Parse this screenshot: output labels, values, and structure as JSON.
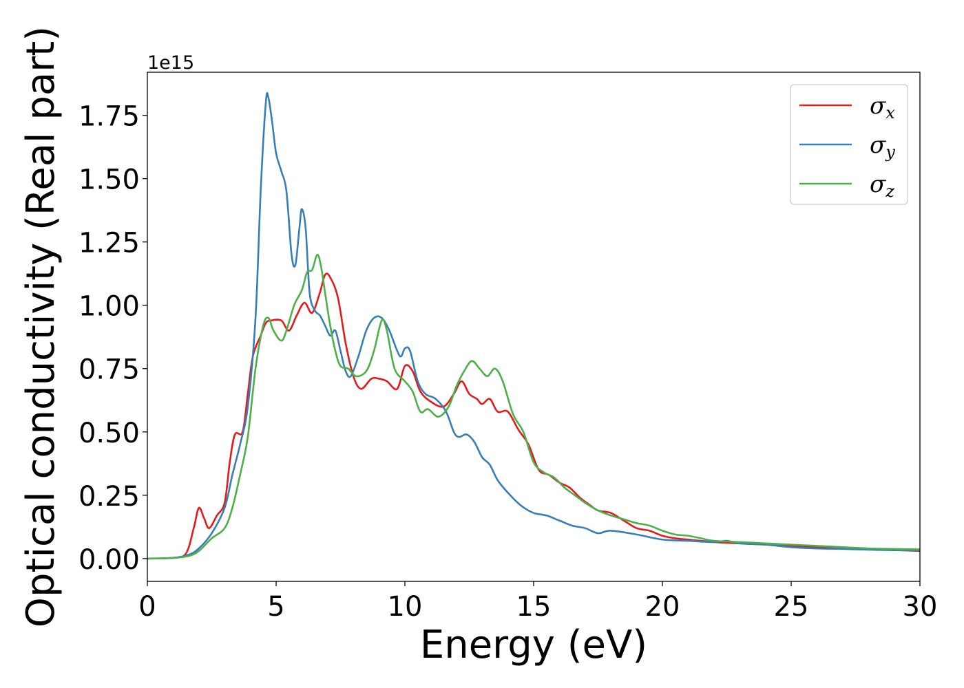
{
  "chart_data": {
    "type": "line",
    "xlabel": "Energy (eV)",
    "ylabel": "Optical conductivity (Real part)",
    "y_offset_label": "1e15",
    "xlim": [
      0,
      30
    ],
    "ylim": [
      -0.09,
      1.92
    ],
    "x_ticks": [
      0,
      5,
      10,
      15,
      20,
      25,
      30
    ],
    "x_tick_labels": [
      "0",
      "5",
      "10",
      "15",
      "20",
      "25",
      "30"
    ],
    "y_ticks": [
      0.0,
      0.25,
      0.5,
      0.75,
      1.0,
      1.25,
      1.5,
      1.75
    ],
    "y_tick_labels": [
      "0.00",
      "0.25",
      "0.50",
      "0.75",
      "1.00",
      "1.25",
      "1.50",
      "1.75"
    ],
    "grid": false,
    "legend_position": "top-right",
    "series": [
      {
        "name": "σx",
        "legend_symbol": "σ",
        "legend_subscript": "x",
        "color": "#e41a1c",
        "points": [
          [
            0,
            0
          ],
          [
            1.0,
            0.003
          ],
          [
            1.5,
            0.02
          ],
          [
            1.8,
            0.12
          ],
          [
            2.0,
            0.2
          ],
          [
            2.2,
            0.16
          ],
          [
            2.4,
            0.12
          ],
          [
            2.7,
            0.17
          ],
          [
            3.0,
            0.22
          ],
          [
            3.2,
            0.38
          ],
          [
            3.4,
            0.49
          ],
          [
            3.7,
            0.5
          ],
          [
            3.9,
            0.65
          ],
          [
            4.1,
            0.8
          ],
          [
            4.4,
            0.88
          ],
          [
            4.6,
            0.93
          ],
          [
            4.8,
            0.94
          ],
          [
            5.2,
            0.94
          ],
          [
            5.5,
            0.9
          ],
          [
            5.8,
            0.96
          ],
          [
            6.1,
            1.01
          ],
          [
            6.4,
            0.97
          ],
          [
            6.7,
            1.05
          ],
          [
            6.9,
            1.12
          ],
          [
            7.1,
            1.11
          ],
          [
            7.4,
            1.03
          ],
          [
            7.7,
            0.85
          ],
          [
            8.0,
            0.72
          ],
          [
            8.3,
            0.67
          ],
          [
            8.7,
            0.71
          ],
          [
            9.0,
            0.71
          ],
          [
            9.3,
            0.7
          ],
          [
            9.7,
            0.67
          ],
          [
            10.0,
            0.76
          ],
          [
            10.3,
            0.74
          ],
          [
            10.6,
            0.66
          ],
          [
            11.0,
            0.62
          ],
          [
            11.5,
            0.6
          ],
          [
            11.9,
            0.65
          ],
          [
            12.2,
            0.7
          ],
          [
            12.5,
            0.65
          ],
          [
            12.8,
            0.63
          ],
          [
            13.0,
            0.61
          ],
          [
            13.3,
            0.63
          ],
          [
            13.6,
            0.58
          ],
          [
            14.0,
            0.58
          ],
          [
            14.4,
            0.51
          ],
          [
            14.8,
            0.45
          ],
          [
            15.2,
            0.35
          ],
          [
            15.6,
            0.33
          ],
          [
            16.0,
            0.3
          ],
          [
            16.4,
            0.28
          ],
          [
            16.8,
            0.24
          ],
          [
            17.2,
            0.21
          ],
          [
            17.5,
            0.19
          ],
          [
            18.0,
            0.18
          ],
          [
            18.5,
            0.15
          ],
          [
            19.0,
            0.12
          ],
          [
            19.5,
            0.11
          ],
          [
            20.0,
            0.09
          ],
          [
            20.5,
            0.08
          ],
          [
            21.0,
            0.075
          ],
          [
            22.0,
            0.065
          ],
          [
            23.0,
            0.06
          ],
          [
            24.0,
            0.055
          ],
          [
            25.0,
            0.05
          ],
          [
            26.0,
            0.045
          ],
          [
            27.0,
            0.04
          ],
          [
            28.0,
            0.038
          ],
          [
            29.0,
            0.034
          ],
          [
            30.0,
            0.03
          ]
        ]
      },
      {
        "name": "σy",
        "legend_symbol": "σ",
        "legend_subscript": "y",
        "color": "#377eb8",
        "points": [
          [
            0,
            0
          ],
          [
            1.0,
            0.003
          ],
          [
            1.6,
            0.015
          ],
          [
            2.0,
            0.04
          ],
          [
            2.5,
            0.1
          ],
          [
            3.0,
            0.2
          ],
          [
            3.3,
            0.33
          ],
          [
            3.6,
            0.45
          ],
          [
            3.9,
            0.6
          ],
          [
            4.2,
            0.95
          ],
          [
            4.4,
            1.45
          ],
          [
            4.6,
            1.8
          ],
          [
            4.7,
            1.82
          ],
          [
            4.85,
            1.72
          ],
          [
            5.0,
            1.6
          ],
          [
            5.2,
            1.53
          ],
          [
            5.4,
            1.45
          ],
          [
            5.6,
            1.2
          ],
          [
            5.75,
            1.16
          ],
          [
            5.9,
            1.3
          ],
          [
            6.0,
            1.38
          ],
          [
            6.15,
            1.3
          ],
          [
            6.3,
            1.05
          ],
          [
            6.5,
            0.98
          ],
          [
            6.7,
            0.96
          ],
          [
            6.9,
            0.92
          ],
          [
            7.1,
            0.88
          ],
          [
            7.3,
            0.9
          ],
          [
            7.5,
            0.82
          ],
          [
            7.7,
            0.74
          ],
          [
            7.9,
            0.72
          ],
          [
            8.2,
            0.8
          ],
          [
            8.5,
            0.9
          ],
          [
            8.8,
            0.95
          ],
          [
            9.1,
            0.95
          ],
          [
            9.4,
            0.9
          ],
          [
            9.8,
            0.8
          ],
          [
            10.0,
            0.83
          ],
          [
            10.2,
            0.82
          ],
          [
            10.5,
            0.7
          ],
          [
            10.8,
            0.65
          ],
          [
            11.2,
            0.63
          ],
          [
            11.6,
            0.58
          ],
          [
            11.9,
            0.5
          ],
          [
            12.1,
            0.48
          ],
          [
            12.4,
            0.49
          ],
          [
            12.7,
            0.46
          ],
          [
            13.0,
            0.4
          ],
          [
            13.3,
            0.37
          ],
          [
            13.6,
            0.31
          ],
          [
            14.0,
            0.26
          ],
          [
            14.5,
            0.21
          ],
          [
            15.0,
            0.18
          ],
          [
            15.5,
            0.17
          ],
          [
            16.0,
            0.15
          ],
          [
            16.5,
            0.13
          ],
          [
            17.0,
            0.12
          ],
          [
            17.5,
            0.1
          ],
          [
            18.0,
            0.11
          ],
          [
            19.0,
            0.095
          ],
          [
            20.0,
            0.075
          ],
          [
            21.0,
            0.07
          ],
          [
            22.0,
            0.065
          ],
          [
            22.5,
            0.07
          ],
          [
            23.0,
            0.06
          ],
          [
            24.0,
            0.055
          ],
          [
            25.0,
            0.045
          ],
          [
            26.0,
            0.04
          ],
          [
            27.0,
            0.038
          ],
          [
            28.0,
            0.035
          ],
          [
            29.0,
            0.033
          ],
          [
            30.0,
            0.033
          ]
        ]
      },
      {
        "name": "σz",
        "legend_symbol": "σ",
        "legend_subscript": "z",
        "color": "#4daf4a",
        "points": [
          [
            0,
            0
          ],
          [
            1.0,
            0.002
          ],
          [
            1.6,
            0.01
          ],
          [
            2.0,
            0.03
          ],
          [
            2.5,
            0.08
          ],
          [
            3.0,
            0.12
          ],
          [
            3.3,
            0.2
          ],
          [
            3.6,
            0.33
          ],
          [
            3.9,
            0.48
          ],
          [
            4.2,
            0.75
          ],
          [
            4.5,
            0.92
          ],
          [
            4.7,
            0.95
          ],
          [
            4.9,
            0.9
          ],
          [
            5.2,
            0.86
          ],
          [
            5.4,
            0.9
          ],
          [
            5.7,
            1.0
          ],
          [
            6.0,
            1.06
          ],
          [
            6.2,
            1.13
          ],
          [
            6.4,
            1.14
          ],
          [
            6.6,
            1.2
          ],
          [
            6.75,
            1.15
          ],
          [
            6.9,
            1.05
          ],
          [
            7.1,
            0.92
          ],
          [
            7.3,
            0.82
          ],
          [
            7.5,
            0.76
          ],
          [
            7.8,
            0.75
          ],
          [
            8.1,
            0.72
          ],
          [
            8.5,
            0.74
          ],
          [
            8.8,
            0.82
          ],
          [
            9.1,
            0.94
          ],
          [
            9.3,
            0.9
          ],
          [
            9.6,
            0.75
          ],
          [
            10.0,
            0.7
          ],
          [
            10.3,
            0.66
          ],
          [
            10.6,
            0.58
          ],
          [
            10.9,
            0.59
          ],
          [
            11.3,
            0.56
          ],
          [
            11.7,
            0.6
          ],
          [
            12.0,
            0.68
          ],
          [
            12.3,
            0.74
          ],
          [
            12.6,
            0.78
          ],
          [
            12.9,
            0.75
          ],
          [
            13.2,
            0.72
          ],
          [
            13.5,
            0.75
          ],
          [
            13.8,
            0.7
          ],
          [
            14.2,
            0.57
          ],
          [
            14.6,
            0.5
          ],
          [
            15.0,
            0.38
          ],
          [
            15.4,
            0.34
          ],
          [
            15.8,
            0.32
          ],
          [
            16.2,
            0.28
          ],
          [
            16.6,
            0.25
          ],
          [
            17.0,
            0.22
          ],
          [
            17.5,
            0.19
          ],
          [
            18.0,
            0.17
          ],
          [
            18.5,
            0.155
          ],
          [
            19.0,
            0.14
          ],
          [
            19.5,
            0.13
          ],
          [
            20.0,
            0.11
          ],
          [
            20.5,
            0.095
          ],
          [
            21.0,
            0.09
          ],
          [
            21.5,
            0.08
          ],
          [
            22.0,
            0.07
          ],
          [
            23.0,
            0.065
          ],
          [
            24.0,
            0.06
          ],
          [
            25.0,
            0.055
          ],
          [
            26.0,
            0.05
          ],
          [
            27.0,
            0.045
          ],
          [
            28.0,
            0.04
          ],
          [
            29.0,
            0.038
          ],
          [
            30.0,
            0.036
          ]
        ]
      }
    ]
  }
}
